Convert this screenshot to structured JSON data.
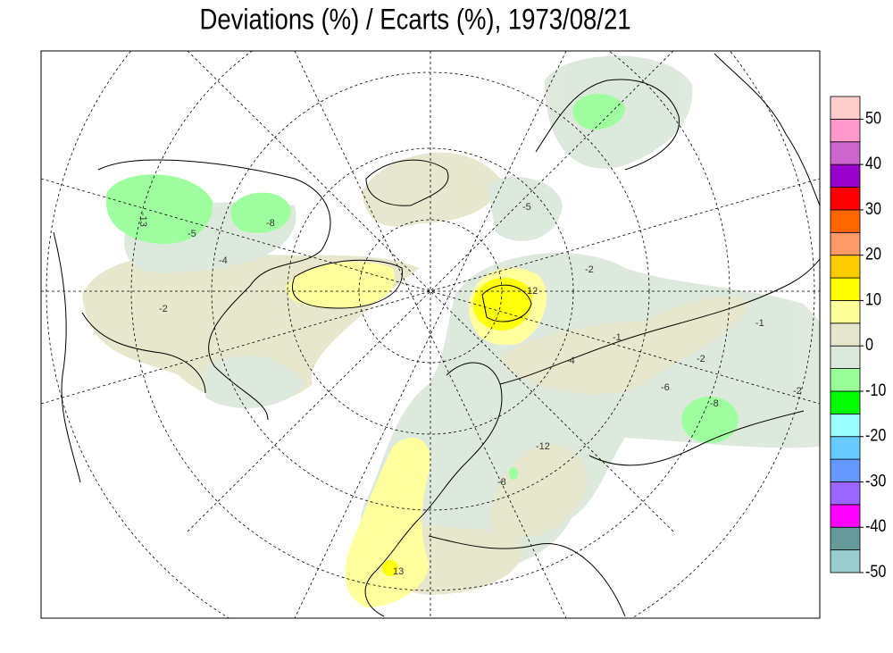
{
  "title": "Deviations (%) / Ecarts (%), 1973/08/21",
  "colorbar": {
    "levels": [
      -50,
      -45,
      -40,
      -35,
      -30,
      -25,
      -20,
      -15,
      -10,
      -5,
      0,
      5,
      10,
      15,
      20,
      25,
      30,
      35,
      40,
      45,
      50,
      55
    ],
    "colors": [
      "#99cccc",
      "#669999",
      "#ff00ff",
      "#9966ff",
      "#6699ff",
      "#66ccff",
      "#99ffff",
      "#00ff00",
      "#99ff99",
      "#dde8dd",
      "#e6e6cc",
      "#ffff99",
      "#ffff00",
      "#ffcc00",
      "#ff9966",
      "#ff6600",
      "#ff0000",
      "#9900cc",
      "#cc66cc",
      "#ff99cc",
      "#ffcccc"
    ],
    "ylim": [
      -50,
      55
    ],
    "ticks": [
      50,
      40,
      30,
      20,
      10,
      0,
      -10,
      -20,
      -30,
      -40,
      -50
    ]
  },
  "contour_labels": [
    "-13",
    "-5",
    "-8",
    "-4",
    "-2",
    "12",
    "-2",
    "-1",
    "-2",
    "-4",
    "-1",
    "-8",
    "-2",
    "-12",
    "-8",
    "13",
    "-5",
    "-6"
  ]
}
